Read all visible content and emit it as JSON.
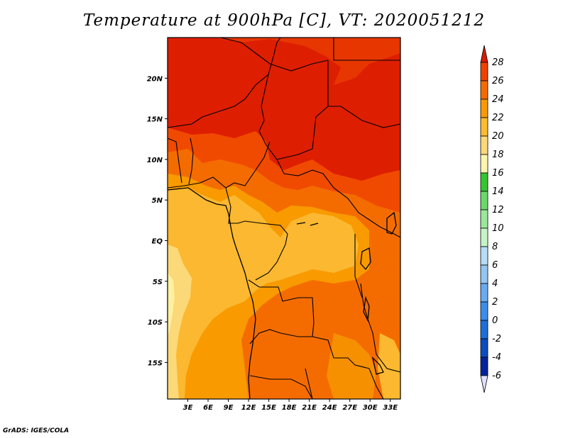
{
  "title": "Temperature at 900hPa [C], VT: 2020051212",
  "credit": "GrADS: IGES/COLA",
  "map": {
    "variable": "Temperature",
    "level": "900hPa",
    "units": "C",
    "valid_time": "2020051212",
    "lon_range": [
      0,
      34.5
    ],
    "lat_range": [
      -19.5,
      25
    ],
    "lon_ticks": [
      "3E",
      "6E",
      "9E",
      "12E",
      "15E",
      "18E",
      "21E",
      "24E",
      "27E",
      "30E",
      "33E"
    ],
    "lon_tick_values": [
      3,
      6,
      9,
      12,
      15,
      18,
      21,
      24,
      27,
      30,
      33
    ],
    "lat_ticks": [
      "20N",
      "15N",
      "10N",
      "5N",
      "EQ",
      "5S",
      "10S",
      "15S"
    ],
    "lat_tick_values": [
      20,
      15,
      10,
      5,
      0,
      -5,
      -10,
      -15
    ]
  },
  "colorbar": {
    "labels": [
      "28",
      "26",
      "24",
      "22",
      "20",
      "18",
      "16",
      "14",
      "12",
      "10",
      "8",
      "6",
      "4",
      "2",
      "0",
      "-2",
      "-4",
      "-6"
    ],
    "colors": [
      "#d81c00",
      "#f04200",
      "#f46c00",
      "#f89a00",
      "#fbbc30",
      "#fbd878",
      "#fdf5ae",
      "#36c430",
      "#6ad86a",
      "#9ae89a",
      "#c6f4c6",
      "#b6dcf6",
      "#92c6f0",
      "#6aaaf0",
      "#3c8cea",
      "#1e6ed8",
      "#0c4cbe",
      "#04229a",
      "#06086e"
    ],
    "top_arrow_color": "#d81c00",
    "bottom_arrow_color": "#e0e0ff"
  },
  "field_colors": {
    "above_28": "#de1e00",
    "c26_28": "#f04a00",
    "c24_26": "#f46c00",
    "c22_24": "#f89a00",
    "c20_22": "#fbb830",
    "c18_20": "#fbd878",
    "c16_18": "#fdf0a0"
  }
}
